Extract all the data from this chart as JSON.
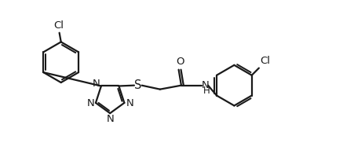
{
  "bg_color": "#ffffff",
  "line_color": "#1a1a1a",
  "lw": 1.6,
  "fs": 9.5,
  "figsize": [
    4.51,
    2.1
  ],
  "dpi": 100,
  "xlim": [
    -0.3,
    10.5
  ],
  "ylim": [
    -0.2,
    4.6
  ]
}
